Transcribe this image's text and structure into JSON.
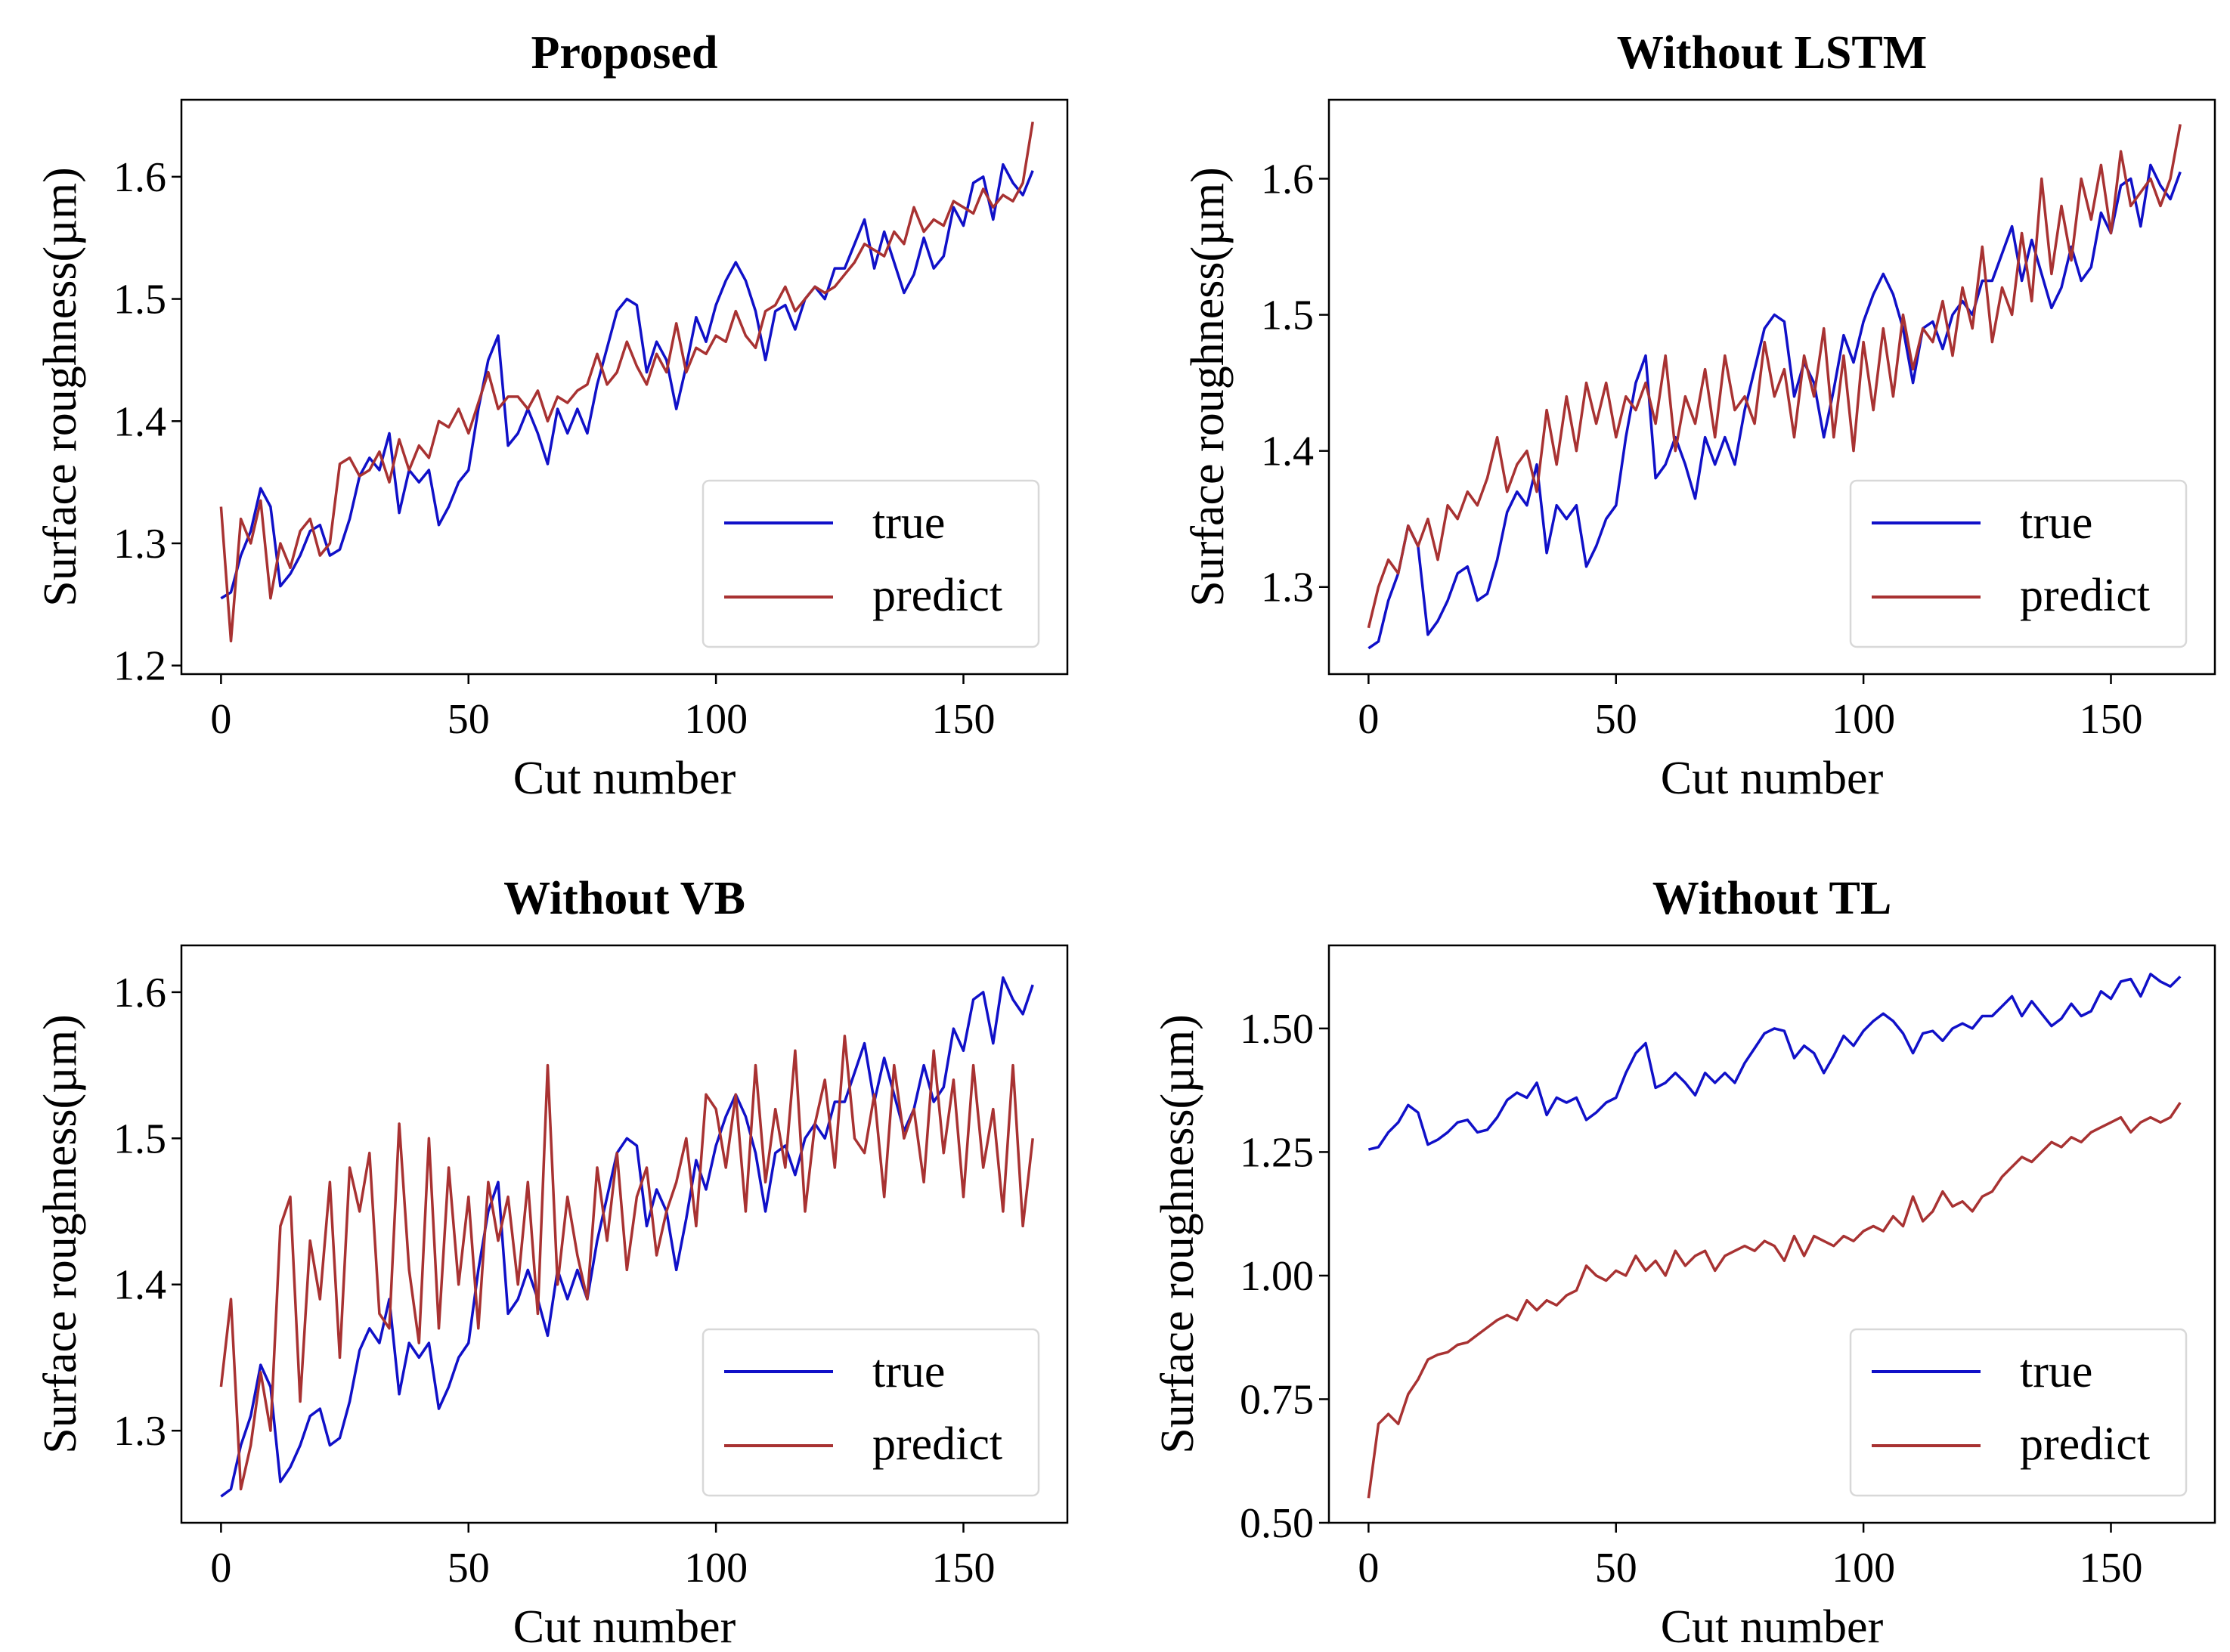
{
  "colors": {
    "true": "#1010c8",
    "predict": "#a83232"
  },
  "chart_data": [
    {
      "type": "line",
      "title": "Proposed",
      "xlabel": "Cut number",
      "ylabel": "Surface roughness(µm)",
      "xlim": [
        -8,
        171
      ],
      "ylim": [
        1.193,
        1.663
      ],
      "xticks": [
        0,
        50,
        100,
        150
      ],
      "yticks": [
        1.2,
        1.3,
        1.4,
        1.5,
        1.6
      ],
      "ytick_labels": [
        "1.2",
        "1.3",
        "1.4",
        "1.5",
        "1.6"
      ],
      "legend": {
        "placement": "lower-right",
        "entries": [
          "true",
          "predict"
        ]
      },
      "series_ref": "predict_proposed"
    },
    {
      "type": "line",
      "title": "Without LSTM",
      "xlabel": "Cut number",
      "ylabel": "Surface roughness(µm)",
      "xlim": [
        -8,
        171
      ],
      "ylim": [
        1.236,
        1.658
      ],
      "xticks": [
        0,
        50,
        100,
        150
      ],
      "yticks": [
        1.3,
        1.4,
        1.5,
        1.6
      ],
      "ytick_labels": [
        "1.3",
        "1.4",
        "1.5",
        "1.6"
      ],
      "legend": {
        "placement": "lower-right",
        "entries": [
          "true",
          "predict"
        ]
      },
      "series_ref": "predict_without_lstm"
    },
    {
      "type": "line",
      "title": "Without VB",
      "xlabel": "Cut number",
      "ylabel": "Surface roughness(µm)",
      "xlim": [
        -8,
        171
      ],
      "ylim": [
        1.237,
        1.632
      ],
      "xticks": [
        0,
        50,
        100,
        150
      ],
      "yticks": [
        1.3,
        1.4,
        1.5,
        1.6
      ],
      "ytick_labels": [
        "1.3",
        "1.4",
        "1.5",
        "1.6"
      ],
      "legend": {
        "placement": "lower-right",
        "entries": [
          "true",
          "predict"
        ]
      },
      "series_ref": "predict_without_vb"
    },
    {
      "type": "line",
      "title": "Without TL",
      "xlabel": "Cut number",
      "ylabel": "Surface roughness(µm)",
      "xlim": [
        -8,
        171
      ],
      "ylim": [
        0.5,
        1.668
      ],
      "xticks": [
        0,
        50,
        100,
        150
      ],
      "yticks": [
        0.5,
        0.75,
        1.0,
        1.25,
        1.5
      ],
      "ytick_labels": [
        "0.50",
        "0.75",
        "1.00",
        "1.25",
        "1.50"
      ],
      "legend": {
        "placement": "lower-right",
        "entries": [
          "true",
          "predict"
        ]
      },
      "series_ref": "predict_without_tl"
    }
  ],
  "x_step": 2,
  "true": [
    1.255,
    1.26,
    1.29,
    1.31,
    1.345,
    1.33,
    1.265,
    1.275,
    1.29,
    1.31,
    1.315,
    1.29,
    1.295,
    1.32,
    1.355,
    1.37,
    1.36,
    1.39,
    1.325,
    1.36,
    1.35,
    1.36,
    1.315,
    1.33,
    1.35,
    1.36,
    1.41,
    1.45,
    1.47,
    1.38,
    1.39,
    1.41,
    1.39,
    1.365,
    1.41,
    1.39,
    1.41,
    1.39,
    1.43,
    1.46,
    1.49,
    1.5,
    1.495,
    1.44,
    1.465,
    1.45,
    1.41,
    1.445,
    1.485,
    1.465,
    1.495,
    1.515,
    1.53,
    1.515,
    1.49,
    1.45,
    1.49,
    1.495,
    1.475,
    1.5,
    1.51,
    1.5,
    1.525,
    1.525,
    1.545,
    1.565,
    1.525,
    1.555,
    1.53,
    1.505,
    1.52,
    1.55,
    1.525,
    1.535,
    1.575,
    1.56,
    1.595,
    1.6,
    1.565,
    1.61,
    1.595,
    1.585,
    1.605
  ],
  "predict_proposed": [
    1.33,
    1.22,
    1.32,
    1.3,
    1.335,
    1.255,
    1.3,
    1.28,
    1.31,
    1.32,
    1.29,
    1.3,
    1.365,
    1.37,
    1.355,
    1.36,
    1.375,
    1.35,
    1.385,
    1.36,
    1.38,
    1.37,
    1.4,
    1.395,
    1.41,
    1.39,
    1.415,
    1.44,
    1.41,
    1.42,
    1.42,
    1.41,
    1.425,
    1.4,
    1.42,
    1.415,
    1.425,
    1.43,
    1.455,
    1.43,
    1.44,
    1.465,
    1.445,
    1.43,
    1.455,
    1.44,
    1.48,
    1.44,
    1.46,
    1.455,
    1.47,
    1.465,
    1.49,
    1.47,
    1.46,
    1.49,
    1.495,
    1.51,
    1.49,
    1.5,
    1.51,
    1.505,
    1.51,
    1.52,
    1.53,
    1.545,
    1.54,
    1.535,
    1.555,
    1.545,
    1.575,
    1.555,
    1.565,
    1.56,
    1.58,
    1.575,
    1.57,
    1.59,
    1.575,
    1.585,
    1.58,
    1.595,
    1.645
  ],
  "predict_without_lstm": [
    1.27,
    1.3,
    1.32,
    1.31,
    1.345,
    1.33,
    1.35,
    1.32,
    1.36,
    1.35,
    1.37,
    1.36,
    1.38,
    1.41,
    1.37,
    1.39,
    1.4,
    1.37,
    1.43,
    1.39,
    1.44,
    1.4,
    1.45,
    1.42,
    1.45,
    1.41,
    1.44,
    1.43,
    1.45,
    1.42,
    1.47,
    1.4,
    1.44,
    1.42,
    1.46,
    1.41,
    1.47,
    1.43,
    1.44,
    1.42,
    1.48,
    1.44,
    1.46,
    1.41,
    1.47,
    1.44,
    1.49,
    1.41,
    1.47,
    1.4,
    1.48,
    1.43,
    1.49,
    1.44,
    1.5,
    1.46,
    1.49,
    1.48,
    1.51,
    1.47,
    1.52,
    1.49,
    1.55,
    1.48,
    1.52,
    1.5,
    1.56,
    1.51,
    1.6,
    1.53,
    1.58,
    1.54,
    1.6,
    1.57,
    1.61,
    1.56,
    1.62,
    1.58,
    1.59,
    1.6,
    1.58,
    1.6,
    1.64
  ],
  "predict_without_vb": [
    1.33,
    1.39,
    1.26,
    1.29,
    1.34,
    1.3,
    1.44,
    1.46,
    1.32,
    1.43,
    1.39,
    1.47,
    1.35,
    1.48,
    1.45,
    1.49,
    1.38,
    1.37,
    1.51,
    1.41,
    1.36,
    1.5,
    1.37,
    1.48,
    1.4,
    1.46,
    1.37,
    1.47,
    1.43,
    1.46,
    1.4,
    1.47,
    1.38,
    1.55,
    1.4,
    1.46,
    1.42,
    1.39,
    1.48,
    1.43,
    1.49,
    1.41,
    1.46,
    1.48,
    1.42,
    1.45,
    1.47,
    1.5,
    1.44,
    1.53,
    1.52,
    1.48,
    1.53,
    1.45,
    1.55,
    1.47,
    1.52,
    1.48,
    1.56,
    1.45,
    1.51,
    1.54,
    1.48,
    1.57,
    1.5,
    1.49,
    1.53,
    1.46,
    1.55,
    1.5,
    1.52,
    1.47,
    1.56,
    1.49,
    1.54,
    1.46,
    1.55,
    1.48,
    1.52,
    1.45,
    1.55,
    1.44,
    1.5
  ],
  "predict_without_tl": [
    0.55,
    0.7,
    0.72,
    0.7,
    0.76,
    0.79,
    0.83,
    0.84,
    0.845,
    0.86,
    0.865,
    0.88,
    0.895,
    0.91,
    0.92,
    0.91,
    0.95,
    0.93,
    0.95,
    0.94,
    0.96,
    0.97,
    1.02,
    1.0,
    0.99,
    1.01,
    1.0,
    1.04,
    1.01,
    1.03,
    1.0,
    1.05,
    1.02,
    1.04,
    1.05,
    1.01,
    1.04,
    1.05,
    1.06,
    1.05,
    1.07,
    1.06,
    1.03,
    1.08,
    1.04,
    1.08,
    1.07,
    1.06,
    1.08,
    1.07,
    1.09,
    1.1,
    1.09,
    1.12,
    1.1,
    1.16,
    1.11,
    1.13,
    1.17,
    1.14,
    1.15,
    1.13,
    1.16,
    1.17,
    1.2,
    1.22,
    1.24,
    1.23,
    1.25,
    1.27,
    1.26,
    1.28,
    1.27,
    1.29,
    1.3,
    1.31,
    1.32,
    1.29,
    1.31,
    1.32,
    1.31,
    1.32,
    1.35
  ]
}
